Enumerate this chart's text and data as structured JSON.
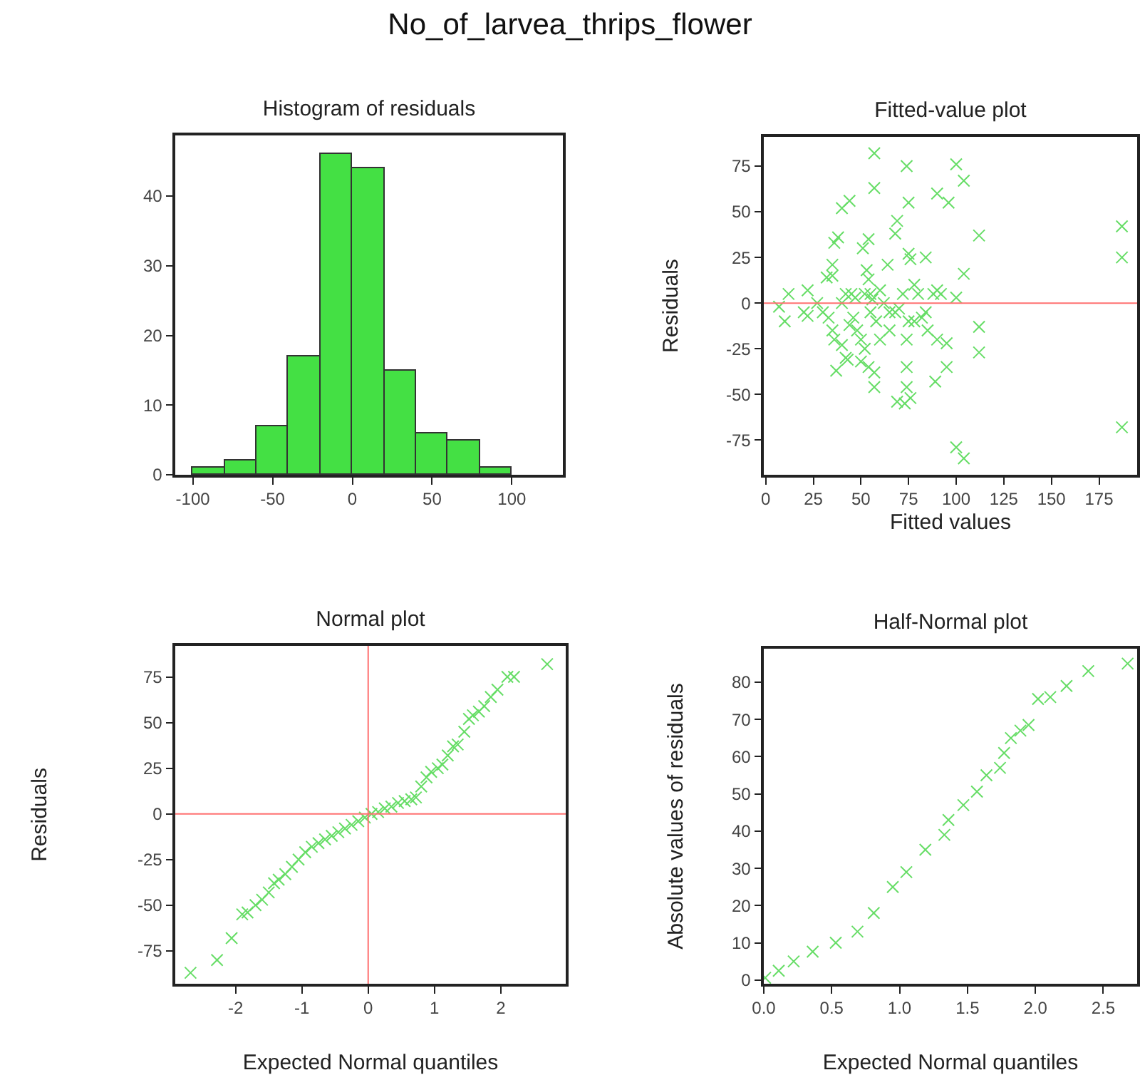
{
  "chart_data": [
    {
      "type": "histogram",
      "title": "No_of_larvea_thrips_flower",
      "subtitle": "Histogram of residuals",
      "bins": [
        -100,
        -80,
        -60,
        -40,
        -20,
        0,
        20,
        40,
        60,
        80,
        100
      ],
      "values": [
        1,
        2,
        7,
        17,
        46,
        44,
        15,
        6,
        5,
        1
      ],
      "color": "#44e044",
      "xlim": [
        -111,
        132
      ],
      "xticks": [
        -100,
        -50,
        0,
        50,
        100
      ],
      "ylim": [
        0,
        48.7
      ],
      "yticks": [
        0,
        10,
        20,
        30,
        40
      ],
      "grid": false
    },
    {
      "type": "scatter",
      "title": "Fitted-value plot",
      "xlabel": "Fitted values",
      "ylabel": "Residuals",
      "marker": "cross",
      "grid": false,
      "x": [
        57,
        74,
        100,
        104,
        57,
        44,
        40,
        75,
        90,
        96,
        69,
        68,
        38,
        36,
        54,
        51,
        112,
        187,
        187,
        35,
        53,
        54,
        75,
        76,
        84,
        64,
        104,
        32,
        35,
        42,
        45,
        47,
        55,
        22,
        12,
        7,
        10,
        20,
        22,
        27,
        30,
        33,
        35,
        36,
        40,
        44,
        46,
        50,
        52,
        55,
        58,
        60,
        65,
        68,
        70,
        72,
        74,
        75,
        78,
        80,
        82,
        85,
        88,
        90,
        92,
        95,
        100,
        112,
        112,
        95,
        89,
        74,
        74,
        76,
        69,
        73,
        57,
        57,
        50,
        54,
        42,
        37,
        43,
        100,
        104,
        187,
        60,
        65,
        78,
        84,
        90,
        62,
        48,
        52,
        56,
        40
      ],
      "series": [
        {
          "color": "#66dd66",
          "values": [
            82,
            75,
            76,
            67,
            63,
            56,
            52,
            55,
            60,
            55,
            45,
            38,
            36,
            33,
            35,
            30,
            37,
            42,
            25,
            21,
            18,
            13,
            27,
            24,
            25,
            21,
            16,
            14,
            15,
            5,
            5,
            3,
            5,
            7,
            5,
            -2,
            -10,
            -5,
            -7,
            0,
            -5,
            -8,
            -15,
            -20,
            -23,
            -12,
            -8,
            -20,
            -25,
            -5,
            -10,
            -20,
            -15,
            -5,
            -3,
            5,
            -20,
            -10,
            10,
            5,
            -8,
            -15,
            5,
            -20,
            5,
            -22,
            3,
            -13,
            -27,
            -35,
            -43,
            -35,
            -46,
            -52,
            -54,
            -55,
            -46,
            -38,
            -32,
            -35,
            -30,
            -37,
            -31,
            -79,
            -85,
            -68,
            7,
            -5,
            -10,
            -5,
            7,
            0,
            -15,
            5,
            2,
            0
          ]
        }
      ],
      "ref_lines": [
        {
          "axis": "y",
          "value": 0,
          "color": "#ff7070"
        }
      ],
      "xlim": [
        -1,
        195
      ],
      "xticks": [
        0,
        25,
        50,
        75,
        100,
        125,
        150,
        175
      ],
      "ylim": [
        -94,
        91
      ],
      "yticks": [
        -75,
        -50,
        -25,
        0,
        25,
        50,
        75
      ]
    },
    {
      "type": "scatter",
      "title": "Normal plot",
      "xlabel": "Expected Normal quantiles",
      "ylabel": "Residuals",
      "marker": "cross",
      "grid": false,
      "x": [
        -2.68,
        -2.28,
        -2.06,
        -1.9,
        -1.82,
        -1.7,
        -1.6,
        -1.5,
        -1.42,
        -1.35,
        -1.25,
        -1.15,
        -1.05,
        -0.95,
        -0.85,
        -0.75,
        -0.65,
        -0.55,
        -0.45,
        -0.35,
        -0.25,
        -0.15,
        -0.05,
        0.05,
        0.15,
        0.25,
        0.35,
        0.45,
        0.55,
        0.65,
        0.72,
        0.8,
        0.88,
        0.95,
        1.05,
        1.12,
        1.2,
        1.28,
        1.35,
        1.45,
        1.52,
        1.58,
        1.67,
        1.75,
        1.85,
        1.95,
        2.1,
        2.2,
        2.7
      ],
      "series": [
        {
          "color": "#66dd66",
          "values": [
            -87,
            -80,
            -68,
            -55,
            -54,
            -50,
            -47,
            -43,
            -38,
            -36,
            -33,
            -29,
            -25,
            -21,
            -18,
            -16,
            -14,
            -12,
            -10,
            -8,
            -6,
            -4,
            -2,
            0,
            1,
            3,
            4,
            6,
            7,
            8,
            9,
            15,
            20,
            23,
            25,
            27,
            32,
            37,
            38,
            45,
            52,
            54,
            56,
            59,
            64,
            68,
            75,
            75,
            82
          ]
        }
      ],
      "ref_lines": [
        {
          "axis": "y",
          "value": 0,
          "color": "#ff7070"
        },
        {
          "axis": "x",
          "value": 0,
          "color": "#ff7070"
        }
      ],
      "xlim": [
        -2.91,
        2.98
      ],
      "xticks": [
        -2,
        -1,
        0,
        1,
        2
      ],
      "ylim": [
        -93,
        92
      ],
      "yticks": [
        -75,
        -50,
        -25,
        0,
        25,
        50,
        75
      ]
    },
    {
      "type": "scatter",
      "title": "Half-Normal plot",
      "xlabel": "Expected Normal quantiles",
      "ylabel": "Absolute values of residuals",
      "marker": "cross",
      "grid": false,
      "x": [
        0.01,
        0.11,
        0.22,
        0.36,
        0.53,
        0.69,
        0.81,
        0.95,
        1.05,
        1.19,
        1.33,
        1.36,
        1.47,
        1.57,
        1.64,
        1.74,
        1.77,
        1.82,
        1.89,
        1.95,
        2.02,
        2.11,
        2.23,
        2.39,
        2.68
      ],
      "series": [
        {
          "color": "#66dd66",
          "values": [
            0.6,
            2.5,
            5,
            7.6,
            10,
            13,
            18,
            25,
            29,
            35,
            39,
            43,
            47,
            50.6,
            55,
            57,
            61,
            65,
            67,
            68.5,
            75.5,
            76,
            79,
            83,
            85
          ]
        }
      ],
      "xlim": [
        0,
        2.75
      ],
      "xticks": [
        {
          "value": 0,
          "label": "0.0"
        },
        {
          "value": 0.5,
          "label": "0.5"
        },
        {
          "value": 1,
          "label": "1.0"
        },
        {
          "value": 1.5,
          "label": "1.5"
        },
        {
          "value": 2,
          "label": "2.0"
        },
        {
          "value": 2.5,
          "label": "2.5"
        }
      ],
      "ylim": [
        -1,
        89
      ],
      "yticks": [
        0,
        10,
        20,
        30,
        40,
        50,
        60,
        70,
        80
      ]
    }
  ]
}
